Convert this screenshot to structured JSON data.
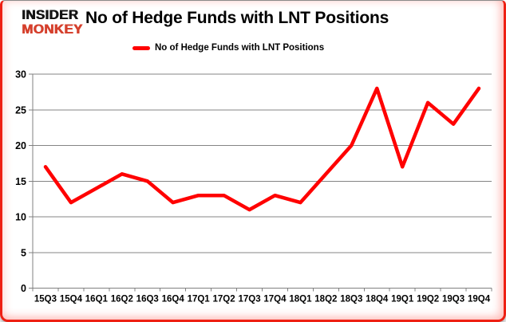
{
  "header": {
    "logo_line1": "INSIDER",
    "logo_line2": "MONKEY",
    "title": "No of Hedge Funds with LNT Positions"
  },
  "legend": {
    "label": "No of Hedge Funds with LNT Positions"
  },
  "colors": {
    "line": "#ff0000",
    "grid": "#848484",
    "axis": "#808080",
    "tick_label": "#000000",
    "card_border": "#ee2013",
    "logo_red": "#d5402d",
    "logo_black": "#141414"
  },
  "chart_data": {
    "type": "line",
    "title": "No of Hedge Funds with LNT Positions",
    "series_name": "No of Hedge Funds with LNT Positions",
    "categories": [
      "15Q3",
      "15Q4",
      "16Q1",
      "16Q2",
      "16Q3",
      "16Q4",
      "17Q1",
      "17Q2",
      "17Q3",
      "17Q4",
      "18Q1",
      "18Q2",
      "18Q3",
      "18Q4",
      "19Q1",
      "19Q2",
      "19Q3",
      "19Q4"
    ],
    "values": [
      17,
      12,
      14,
      16,
      15,
      12,
      13,
      13,
      11,
      13,
      12,
      16,
      20,
      28,
      17,
      26,
      23,
      28
    ],
    "xlabel": "",
    "ylabel": "",
    "ylim": [
      0,
      30
    ],
    "ytick_step": 5,
    "yticks": [
      0,
      5,
      10,
      15,
      20,
      25,
      30
    ],
    "grid": true,
    "legend_position": "top-center"
  }
}
